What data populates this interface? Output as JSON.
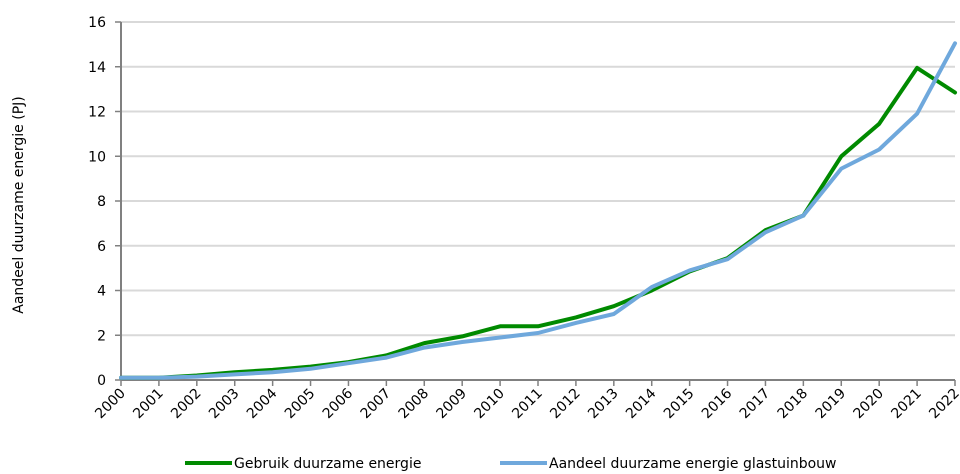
{
  "chart_data": {
    "type": "line",
    "title": "",
    "xlabel": "",
    "ylabel": "Aandeel duurzame energie (PJ)",
    "ylim": [
      0,
      16
    ],
    "yticks": [
      0,
      2,
      4,
      6,
      8,
      10,
      12,
      14,
      16
    ],
    "grid": "horizontal",
    "legend_position": "bottom",
    "x": [
      "2000",
      "2001",
      "2002",
      "2003",
      "2004",
      "2005",
      "2006",
      "2007",
      "2008",
      "2009",
      "2010",
      "2011",
      "2012",
      "2013",
      "2014",
      "2015",
      "2016",
      "2017",
      "2018",
      "2019",
      "2020",
      "2021",
      "2022"
    ],
    "series": [
      {
        "name": "Gebruik duurzame energie",
        "color": "#008a00",
        "values": [
          0.1,
          0.1,
          0.2,
          0.35,
          0.45,
          0.6,
          0.8,
          1.1,
          1.65,
          1.95,
          2.4,
          2.4,
          2.8,
          3.3,
          4.0,
          4.85,
          5.45,
          6.7,
          7.35,
          10.0,
          11.45,
          13.95,
          12.85
        ]
      },
      {
        "name": "Aandeel duurzame energie glastuinbouw",
        "color": "#6fa8dc",
        "values": [
          0.1,
          0.1,
          0.15,
          0.25,
          0.35,
          0.5,
          0.75,
          1.0,
          1.45,
          1.7,
          1.9,
          2.1,
          2.55,
          2.95,
          4.15,
          4.9,
          5.4,
          6.6,
          7.35,
          9.45,
          10.3,
          11.9,
          15.05
        ]
      }
    ]
  }
}
